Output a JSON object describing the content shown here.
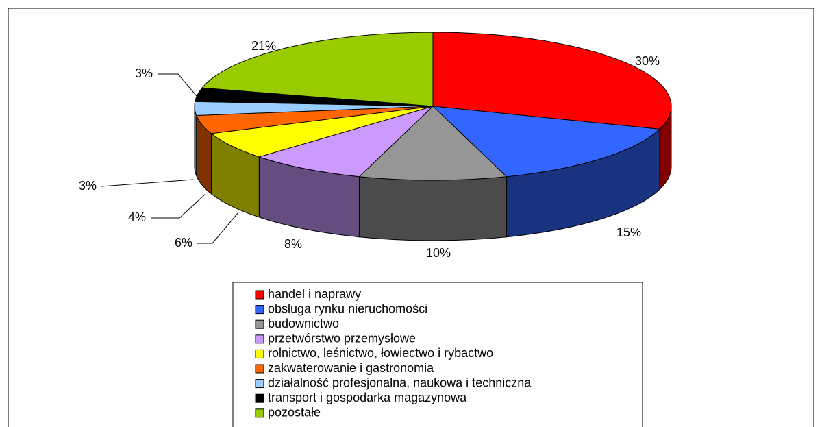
{
  "chart_data": {
    "type": "pie3d",
    "categories": [
      "handel i naprawy",
      "obsługa rynku nieruchomości",
      "budownictwo",
      "przetwórstwo przemysłowe",
      "rolnictwo, leśnictwo, łowiectwo i rybactwo",
      "zakwaterowanie i gastronomia",
      "działalność profesjonalna, naukowa i techniczna",
      "transport i gospodarka magazynowa",
      "pozostałe"
    ],
    "values": [
      30,
      15,
      10,
      8,
      6,
      4,
      3,
      3,
      21
    ],
    "value_labels": [
      "30%",
      "15%",
      "10%",
      "8%",
      "6%",
      "4%",
      "3%",
      "3%",
      "21%"
    ],
    "colors": [
      "#ff0000",
      "#3366ff",
      "#969696",
      "#cc99ff",
      "#ffff00",
      "#ff6600",
      "#99ccff",
      "#000000",
      "#99cc00"
    ]
  }
}
